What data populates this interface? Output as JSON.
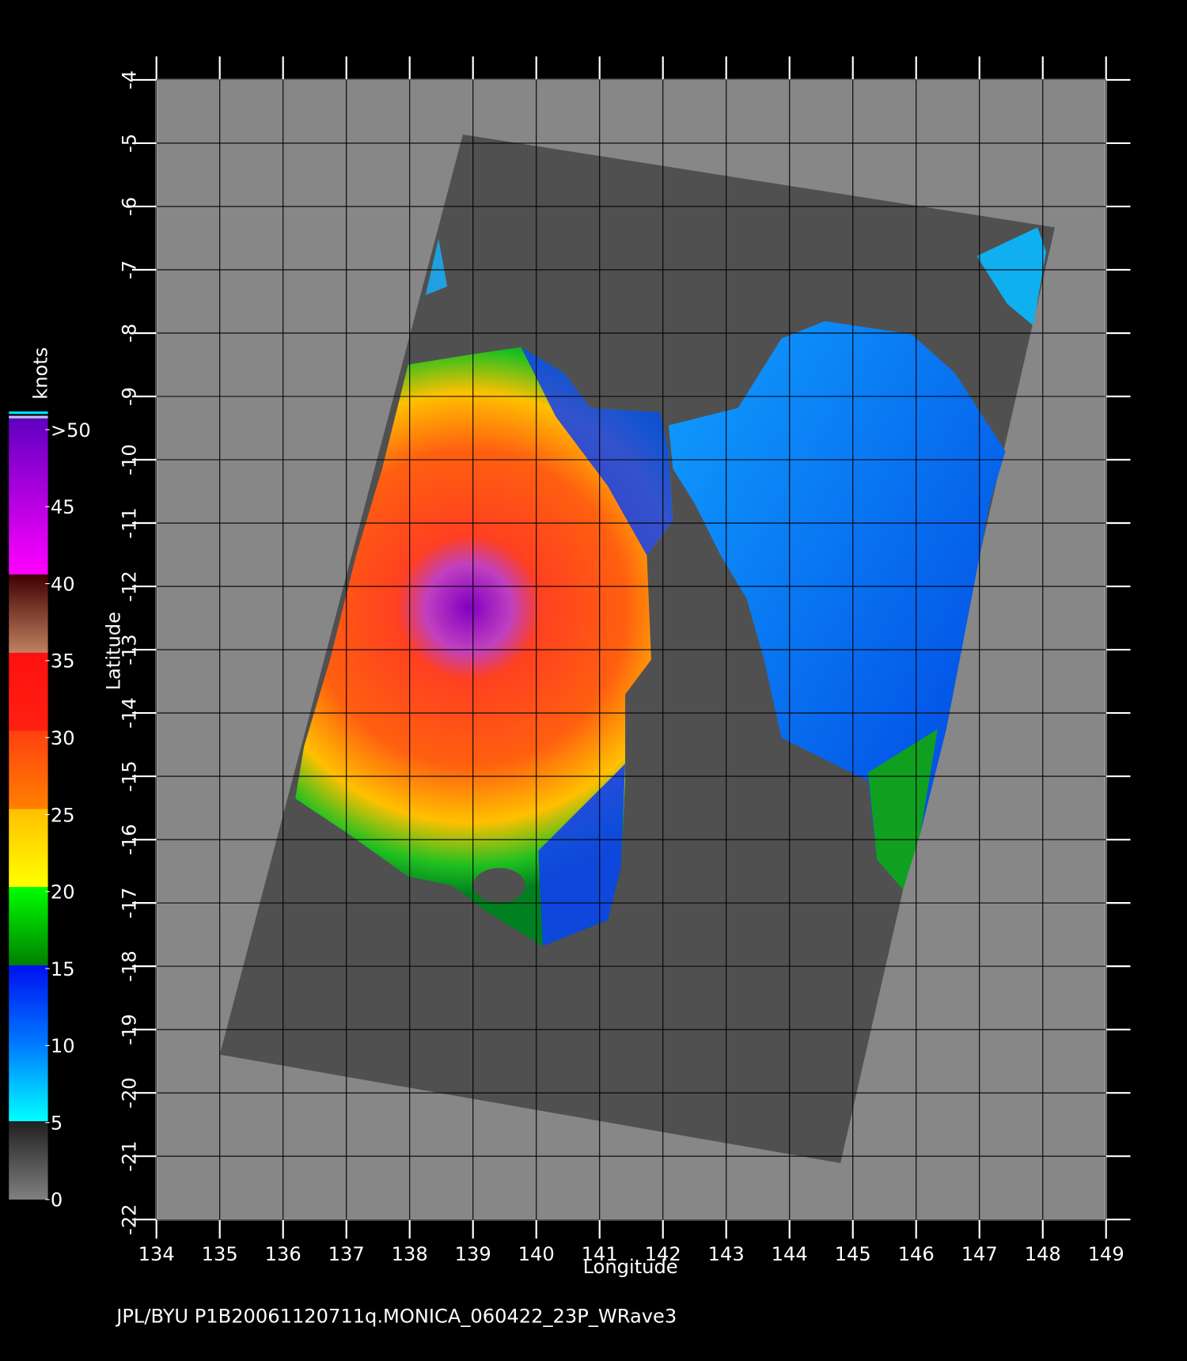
{
  "map": {
    "title": "JPL/BYU  P1B20061120711q.MONICA_060422_23P_WRave3",
    "x_label": "Longitude",
    "y_label": "Latitude",
    "xlim": [
      134,
      149
    ],
    "ylim": [
      -22,
      -4
    ],
    "xticks": [
      134,
      135,
      136,
      137,
      138,
      139,
      140,
      141,
      142,
      143,
      144,
      145,
      146,
      147,
      148,
      149
    ],
    "yticks": [
      -4,
      -5,
      -6,
      -7,
      -8,
      -9,
      -10,
      -11,
      -12,
      -13,
      -14,
      -15,
      -16,
      -17,
      -18,
      -19,
      -20,
      -21,
      -22
    ],
    "colorbar": {
      "label": "knots",
      "lim": [
        0,
        50
      ],
      "ticks": [
        0,
        5,
        10,
        15,
        20,
        25,
        30,
        35,
        40,
        45,
        {
          "value": 50,
          "label": ">50"
        }
      ]
    }
  }
}
